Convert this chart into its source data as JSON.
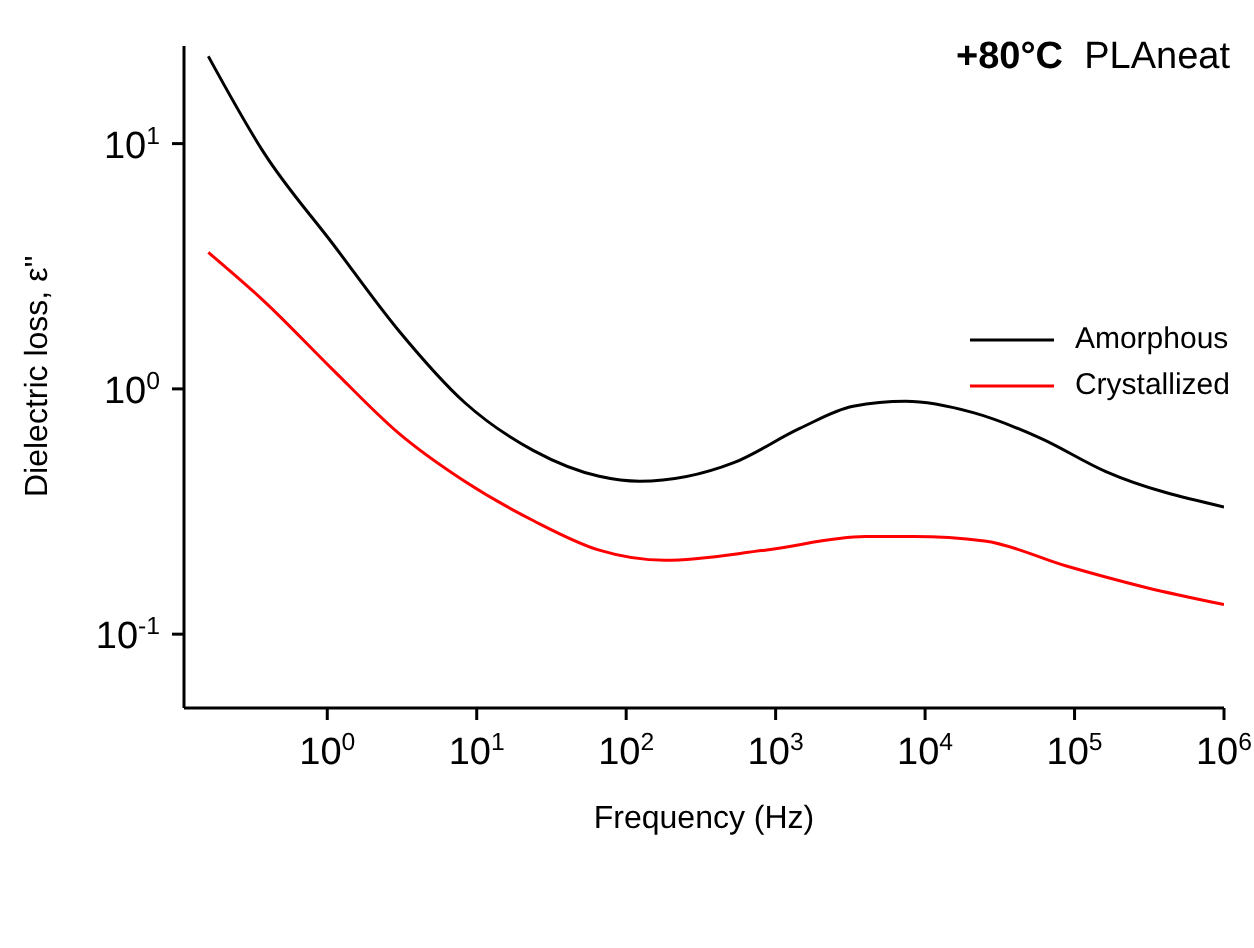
{
  "chart_data": {
    "type": "line",
    "title": "+80°C PLAneat",
    "xlabel": "Frequency (Hz)",
    "ylabel": "Dielectric loss, ε''",
    "log": "xy",
    "xlim": [
      0.11,
      1000000
    ],
    "ylim": [
      0.05,
      25
    ],
    "xticks": [
      {
        "value": 1,
        "label": "10$^{0}$"
      },
      {
        "value": 10,
        "label": "10$^{1}$"
      },
      {
        "value": 100,
        "label": "10$^{2}$"
      },
      {
        "value": 1000,
        "label": "10$^{3}$"
      },
      {
        "value": 10000,
        "label": "10$^{4}$"
      },
      {
        "value": 100000,
        "label": "10$^{5}$"
      },
      {
        "value": 1000000,
        "label": "10$^{6}$"
      }
    ],
    "yticks": [
      {
        "value": 0.1,
        "label": "10$^{-1}$"
      },
      {
        "value": 1,
        "label": "10$^{0}$"
      },
      {
        "value": 10,
        "label": "10$^{1}$"
      }
    ],
    "legend": "right",
    "marker": "none",
    "line_style": "solid",
    "series": [
      {
        "name": "Amorphous",
        "color": "#000000",
        "x": [
          0.16,
          0.38,
          1.1,
          3,
          8.3,
          24,
          66,
          123,
          525,
          1450,
          3300,
          7400,
          21000,
          59000,
          162000,
          1000000
        ],
        "values": [
          22.7,
          9.1,
          3.87,
          1.73,
          0.88,
          0.56,
          0.44,
          0.42,
          0.5,
          0.69,
          0.85,
          0.89,
          0.8,
          0.63,
          0.46,
          0.33
        ]
      },
      {
        "name": "Crystallized",
        "color": "#ff0000",
        "x": [
          0.16,
          0.38,
          1.1,
          3,
          8.3,
          24,
          66,
          182,
          850,
          4000,
          8300,
          25000,
          87000,
          300000,
          1000000
        ],
        "values": [
          3.6,
          2.27,
          1.19,
          0.66,
          0.42,
          0.29,
          0.22,
          0.2,
          0.22,
          0.25,
          0.25,
          0.24,
          0.19,
          0.155,
          0.132
        ]
      }
    ]
  }
}
